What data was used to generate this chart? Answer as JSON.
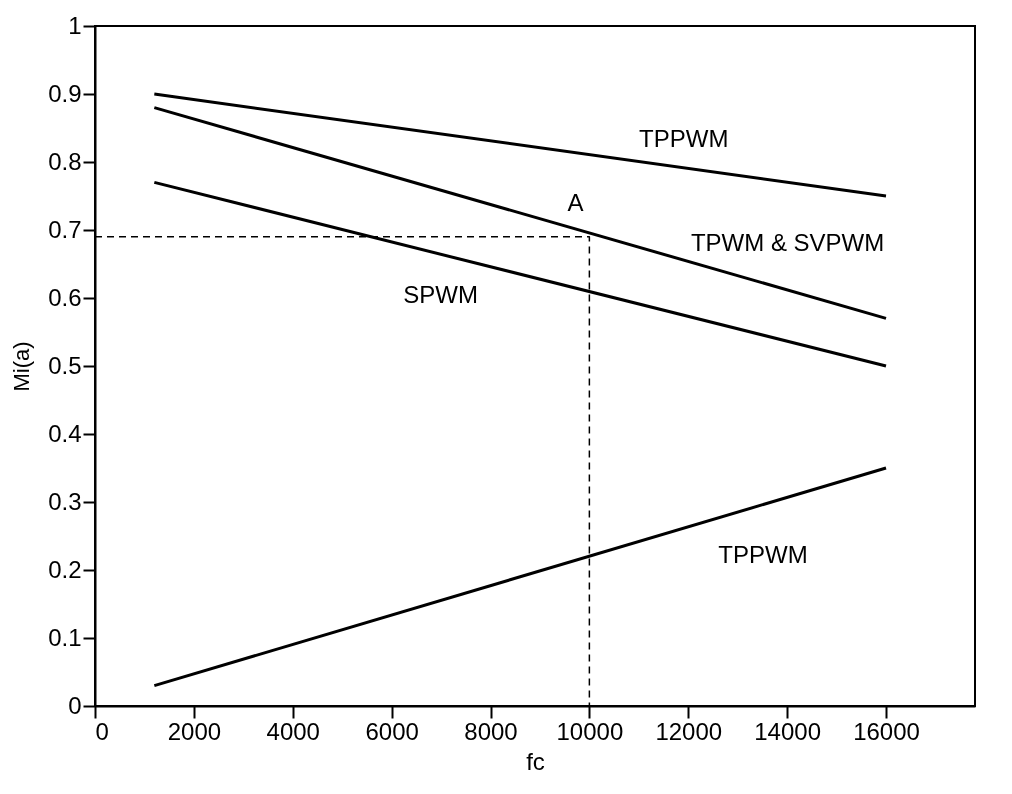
{
  "chart_data": {
    "type": "line",
    "xlabel": "fc",
    "ylabel": "Mi(a)",
    "xlim": [
      0,
      17800
    ],
    "ylim": [
      0,
      1
    ],
    "xticks": [
      0,
      2000,
      4000,
      6000,
      8000,
      10000,
      12000,
      14000,
      16000
    ],
    "yticks": [
      0,
      0.1,
      0.2,
      0.3,
      0.4,
      0.5,
      0.6,
      0.7,
      0.8,
      0.9,
      1
    ],
    "grid": false,
    "marker": "none",
    "series": [
      {
        "color": "#000000",
        "line_style": "solid",
        "x": [
          1200,
          16000
        ],
        "values": [
          0.9,
          0.75
        ]
      },
      {
        "color": "#000000",
        "line_style": "solid",
        "x": [
          1200,
          16000
        ],
        "values": [
          0.88,
          0.57
        ]
      },
      {
        "color": "#000000",
        "line_style": "solid",
        "x": [
          1200,
          16000
        ],
        "values": [
          0.77,
          0.5
        ]
      },
      {
        "color": "#000000",
        "line_style": "solid",
        "x": [
          1200,
          16000
        ],
        "values": [
          0.03,
          0.35
        ]
      },
      {
        "color": "#000000",
        "line_style": "dashed",
        "x": [
          0,
          10000,
          10000
        ],
        "values": [
          0.69,
          0.69,
          0
        ]
      }
    ],
    "annotations": [
      {
        "text": "A",
        "x": 10000,
        "y": 0.7
      },
      {
        "text": "TPPWM",
        "x": 11100,
        "y": 0.8
      },
      {
        "text": "TPWM  &  SVPWM",
        "x": 13200,
        "y": 0.63
      },
      {
        "text": "SPWM",
        "x": 7800,
        "y": 0.65
      },
      {
        "text": "TPPWM",
        "x": 12500,
        "y": 0.27
      }
    ]
  }
}
